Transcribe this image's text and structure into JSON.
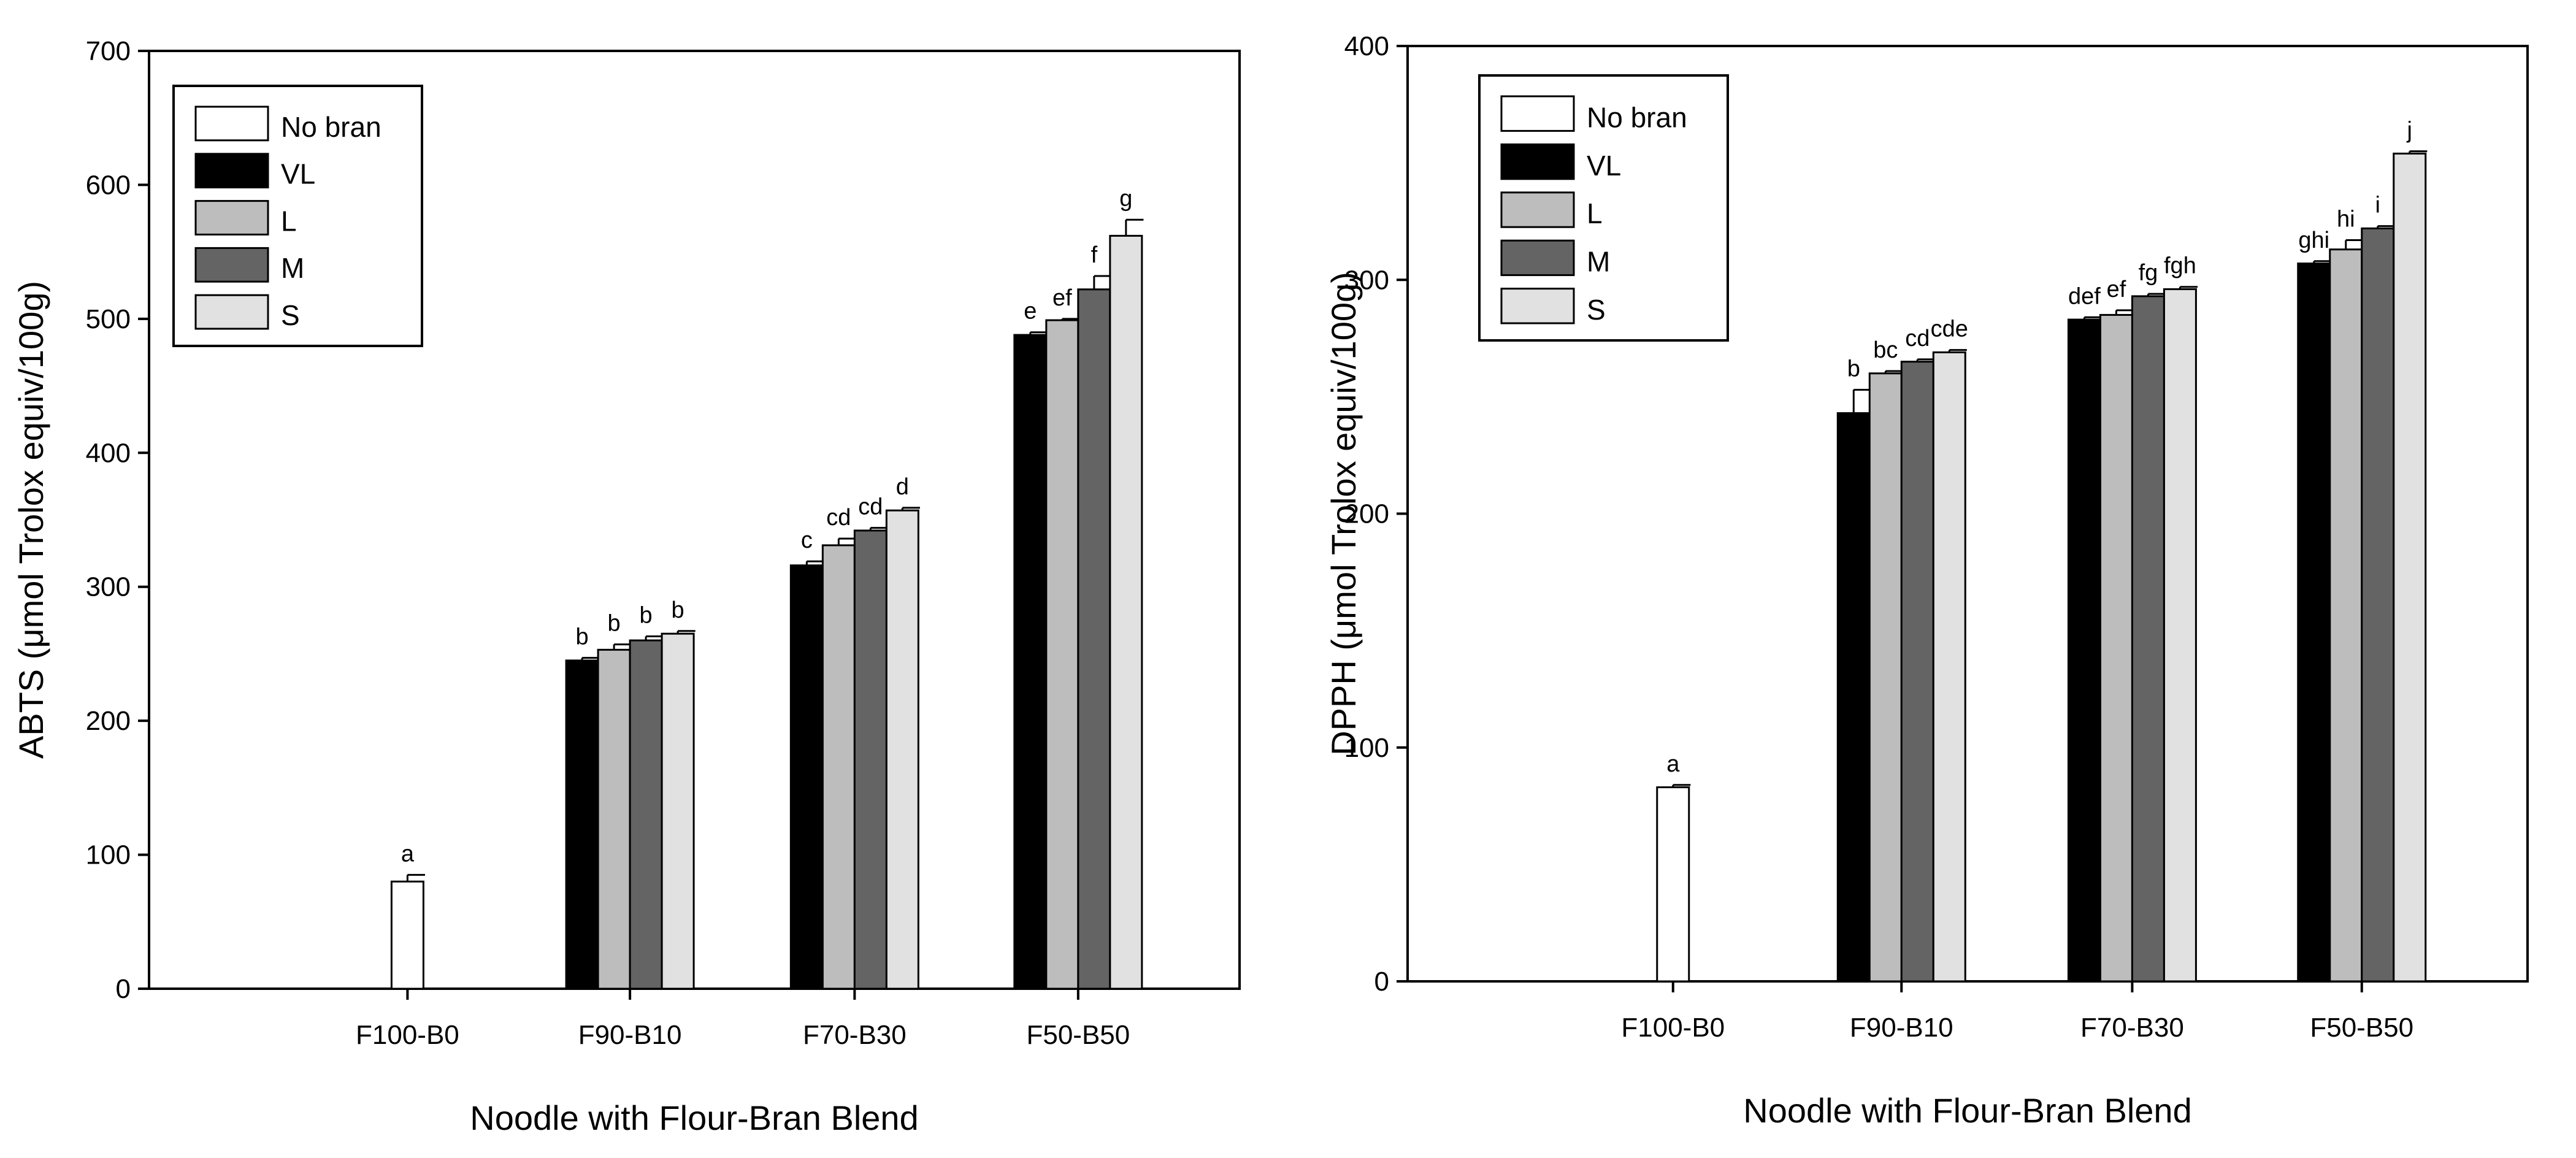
{
  "chart_data": [
    {
      "type": "bar",
      "xlabel": "Noodle with Flour-Bran Blend",
      "ylabel": "ABTS (μmol Trolox equiv/100g)",
      "ylim": [
        0,
        700
      ],
      "yticks": [
        0,
        100,
        200,
        300,
        400,
        500,
        600,
        700
      ],
      "categories": [
        "F100-B0",
        "F90-B10",
        "F70-B30",
        "F50-B50"
      ],
      "legend_position": "top-left",
      "series": [
        {
          "name": "No bran",
          "color": "#ffffff",
          "values": [
            80,
            null,
            null,
            null
          ],
          "errors": [
            5,
            null,
            null,
            null
          ],
          "labels": [
            "a",
            null,
            null,
            null
          ]
        },
        {
          "name": "VL",
          "color": "#000000",
          "values": [
            null,
            245,
            316,
            488
          ],
          "errors": [
            null,
            2,
            3,
            2
          ],
          "labels": [
            null,
            "b",
            "c",
            "e"
          ]
        },
        {
          "name": "L",
          "color": "#bdbdbd",
          "values": [
            null,
            253,
            331,
            499
          ],
          "errors": [
            null,
            4,
            5,
            1
          ],
          "labels": [
            null,
            "b",
            "cd",
            "ef"
          ]
        },
        {
          "name": "M",
          "color": "#646464",
          "values": [
            null,
            260,
            342,
            522
          ],
          "errors": [
            null,
            3,
            2,
            10
          ],
          "labels": [
            null,
            "b",
            "cd",
            "f"
          ]
        },
        {
          "name": "S",
          "color": "#e1e1e1",
          "values": [
            null,
            265,
            357,
            562
          ],
          "errors": [
            null,
            2,
            2,
            12
          ],
          "labels": [
            null,
            "b",
            "d",
            "g"
          ]
        }
      ]
    },
    {
      "type": "bar",
      "xlabel": "Noodle with Flour-Bran Blend",
      "ylabel": "DPPH (μmol Trolox equiv/100g)",
      "ylim": [
        0,
        400
      ],
      "yticks": [
        0,
        100,
        200,
        300,
        400
      ],
      "categories": [
        "F100-B0",
        "F90-B10",
        "F70-B30",
        "F50-B50"
      ],
      "legend_position": "top-left",
      "series": [
        {
          "name": "No bran",
          "color": "#ffffff",
          "values": [
            83,
            null,
            null,
            null
          ],
          "errors": [
            1,
            null,
            null,
            null
          ],
          "labels": [
            "a",
            null,
            null,
            null
          ]
        },
        {
          "name": "VL",
          "color": "#000000",
          "values": [
            null,
            243,
            283,
            307
          ],
          "errors": [
            null,
            10,
            1,
            1
          ],
          "labels": [
            null,
            "b",
            "def",
            "ghi"
          ]
        },
        {
          "name": "L",
          "color": "#bdbdbd",
          "values": [
            null,
            260,
            285,
            313
          ],
          "errors": [
            null,
            1,
            2,
            4
          ],
          "labels": [
            null,
            "bc",
            "ef",
            "hi"
          ]
        },
        {
          "name": "M",
          "color": "#646464",
          "values": [
            null,
            265,
            293,
            322
          ],
          "errors": [
            null,
            1,
            1,
            1
          ],
          "labels": [
            null,
            "cd",
            "fg",
            "i"
          ]
        },
        {
          "name": "S",
          "color": "#e1e1e1",
          "values": [
            null,
            269,
            296,
            354
          ],
          "errors": [
            null,
            1,
            1,
            1
          ],
          "labels": [
            null,
            "cde",
            "fgh",
            "j"
          ]
        }
      ]
    }
  ]
}
